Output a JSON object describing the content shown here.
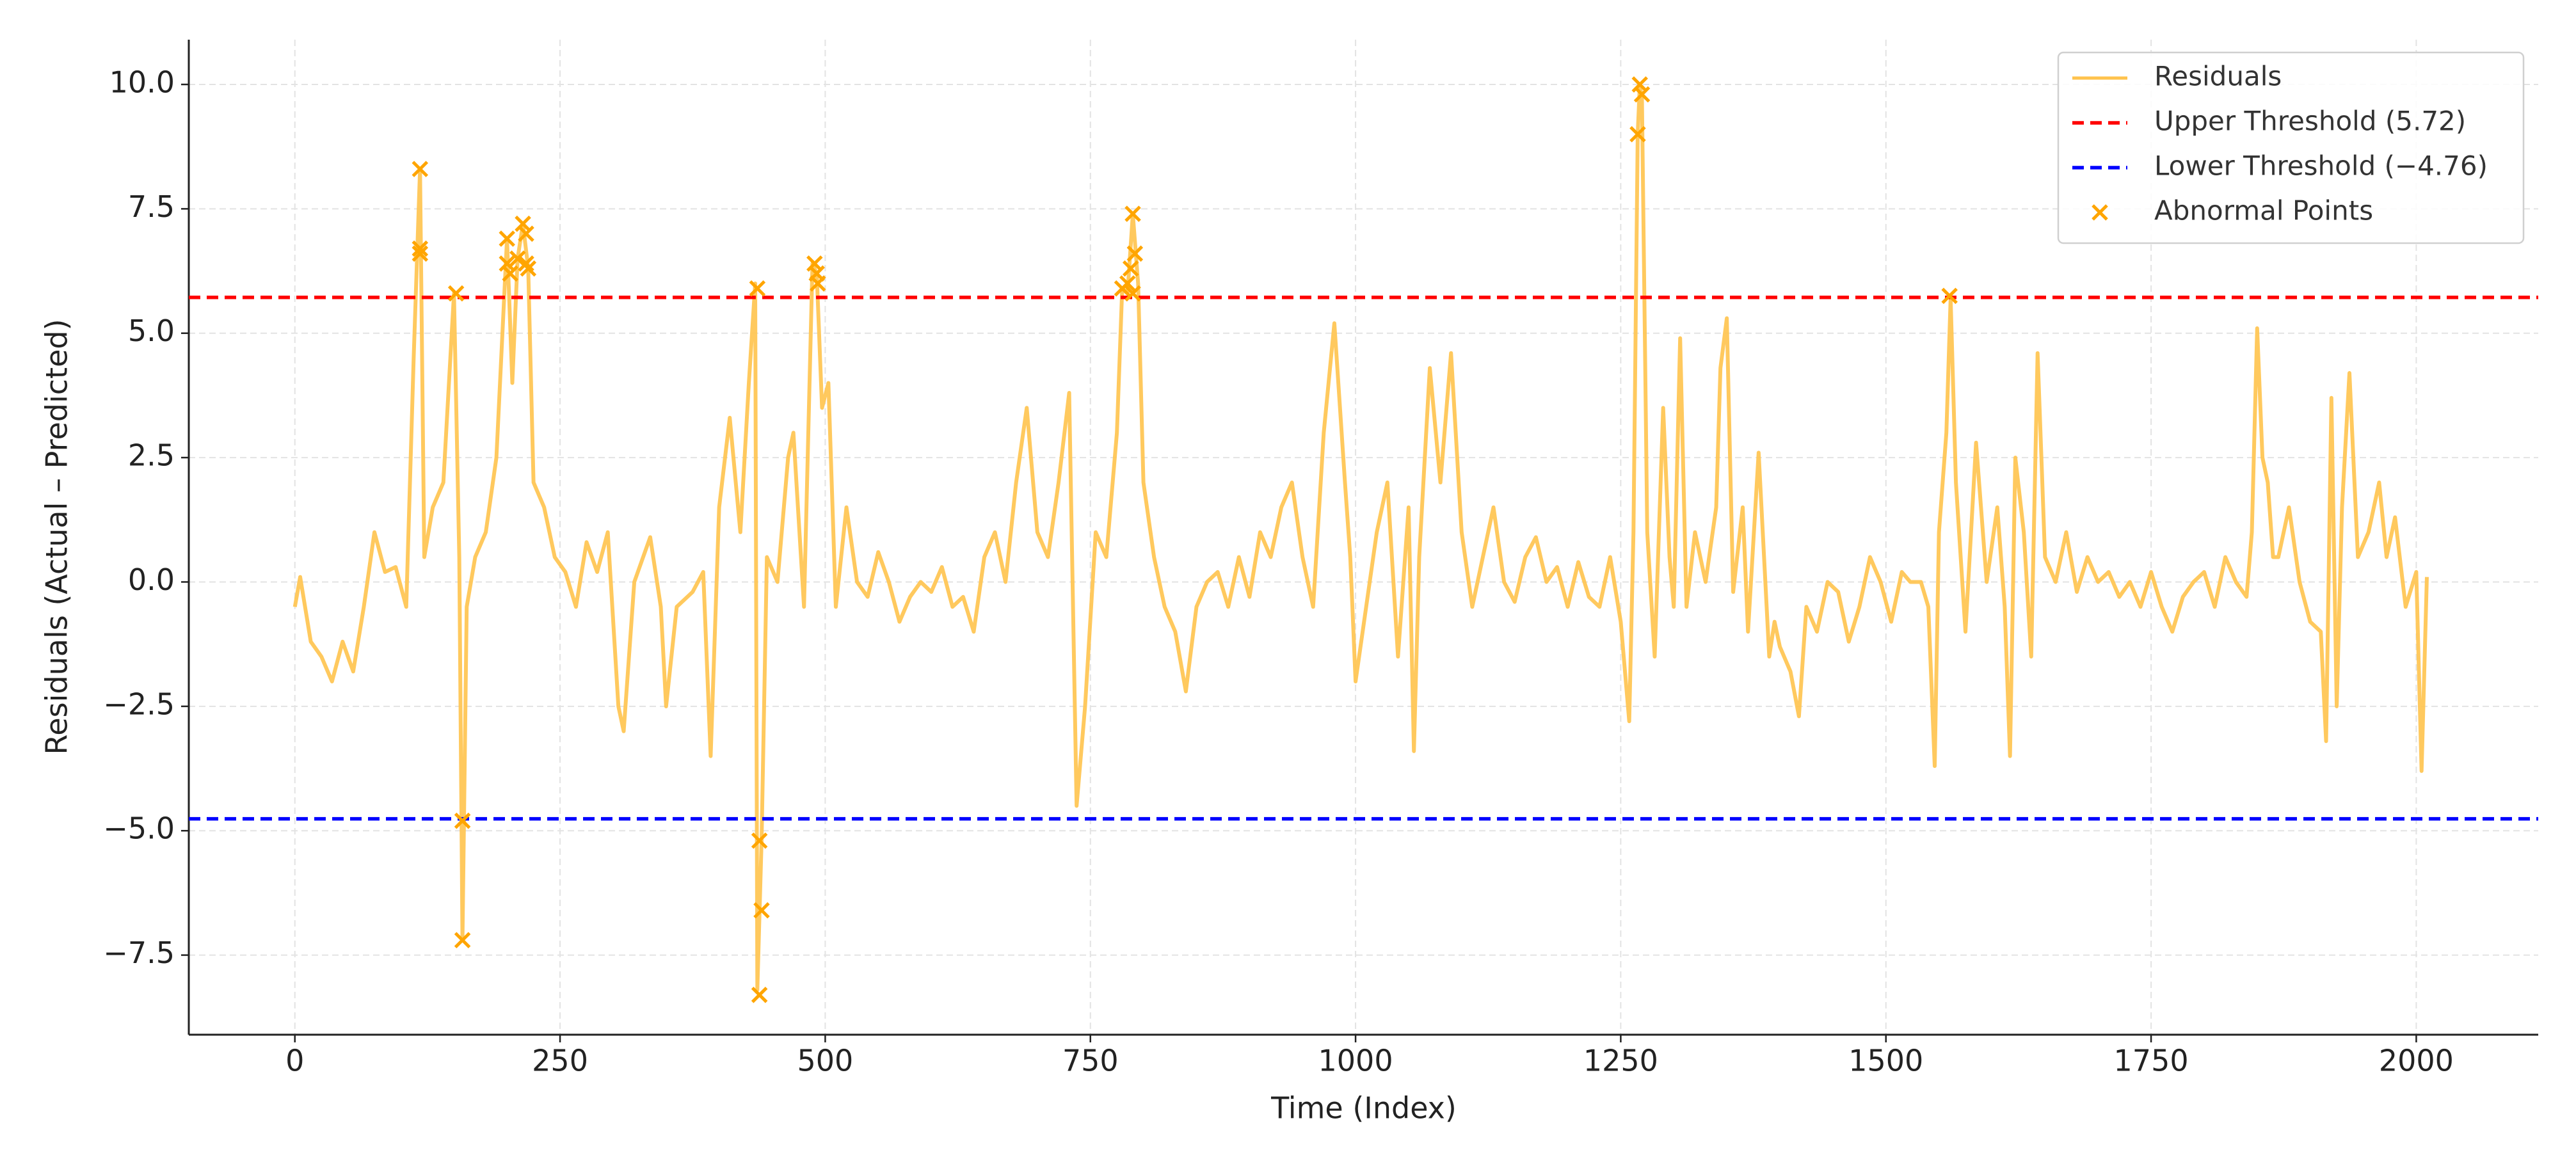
{
  "chart_data": {
    "type": "line",
    "xlabel": "Time (Index)",
    "ylabel": "Residuals (Actual – Predicted)",
    "xlim": [
      -100,
      2115
    ],
    "ylim": [
      -9.1,
      10.9
    ],
    "xticks": [
      0,
      250,
      500,
      750,
      1000,
      1250,
      1500,
      1750,
      2000
    ],
    "yticks": [
      {
        "value": -7.5,
        "label": "−7.5"
      },
      {
        "value": -5,
        "label": "−5.0"
      },
      {
        "value": -2.5,
        "label": "−2.5"
      },
      {
        "value": 0,
        "label": "0.0"
      },
      {
        "value": 2.5,
        "label": "2.5"
      },
      {
        "value": 5,
        "label": "5.0"
      },
      {
        "value": 7.5,
        "label": "7.5"
      },
      {
        "value": 10,
        "label": "10.0"
      }
    ],
    "grid": true,
    "legend": "upper right",
    "series": [
      {
        "name": "Residuals",
        "type": "line",
        "color": "#ffc34d",
        "x": [
          0,
          5,
          15,
          25,
          35,
          45,
          55,
          65,
          75,
          85,
          95,
          105,
          112,
          118,
          122,
          130,
          140,
          150,
          155,
          158,
          162,
          170,
          180,
          190,
          200,
          205,
          210,
          215,
          220,
          225,
          235,
          245,
          255,
          265,
          275,
          285,
          295,
          305,
          310,
          320,
          335,
          345,
          350,
          360,
          375,
          385,
          392,
          400,
          410,
          420,
          428,
          434,
          436,
          440,
          445,
          455,
          465,
          470,
          480,
          488,
          492,
          497,
          503,
          510,
          520,
          530,
          540,
          550,
          560,
          570,
          580,
          590,
          600,
          610,
          620,
          630,
          640,
          650,
          660,
          670,
          680,
          690,
          700,
          710,
          720,
          730,
          737,
          745,
          755,
          765,
          775,
          780,
          785,
          790,
          795,
          800,
          810,
          820,
          830,
          840,
          850,
          860,
          870,
          880,
          890,
          900,
          910,
          920,
          930,
          940,
          950,
          960,
          970,
          980,
          990,
          995,
          1000,
          1010,
          1020,
          1030,
          1040,
          1050,
          1055,
          1060,
          1070,
          1080,
          1090,
          1100,
          1110,
          1120,
          1130,
          1140,
          1150,
          1160,
          1170,
          1180,
          1190,
          1200,
          1210,
          1220,
          1230,
          1240,
          1250,
          1258,
          1262,
          1266,
          1268,
          1270,
          1275,
          1282,
          1290,
          1296,
          1300,
          1306,
          1312,
          1320,
          1330,
          1340,
          1344,
          1350,
          1356,
          1365,
          1370,
          1380,
          1390,
          1395,
          1400,
          1410,
          1418,
          1425,
          1435,
          1445,
          1455,
          1465,
          1475,
          1485,
          1495,
          1505,
          1515,
          1523,
          1533,
          1540,
          1546,
          1550,
          1557,
          1561,
          1566,
          1575,
          1585,
          1595,
          1605,
          1612,
          1617,
          1622,
          1630,
          1637,
          1643,
          1650,
          1660,
          1670,
          1680,
          1690,
          1700,
          1710,
          1720,
          1730,
          1740,
          1750,
          1760,
          1770,
          1780,
          1790,
          1800,
          1810,
          1820,
          1830,
          1840,
          1845,
          1850,
          1855,
          1860,
          1865,
          1870,
          1880,
          1890,
          1900,
          1910,
          1915,
          1920,
          1925,
          1930,
          1937,
          1945,
          1955,
          1965,
          1972,
          1980,
          1990,
          2000,
          2005,
          2010
        ],
        "values": [
          -0.5,
          0.1,
          -1.2,
          -1.5,
          -2.0,
          -1.2,
          -1.8,
          -0.5,
          1.0,
          0.2,
          0.3,
          -0.5,
          4.5,
          8.3,
          0.5,
          1.5,
          2.0,
          5.8,
          0.5,
          -7.2,
          -0.5,
          0.5,
          1.0,
          2.5,
          6.9,
          4.0,
          6.5,
          7.2,
          6.3,
          2.0,
          1.5,
          0.5,
          0.2,
          -0.5,
          0.8,
          0.2,
          1.0,
          -2.5,
          -3.0,
          0.0,
          0.9,
          -0.5,
          -2.5,
          -0.5,
          -0.2,
          0.2,
          -3.5,
          1.5,
          3.3,
          1.0,
          4.0,
          6.0,
          -8.2,
          -5.2,
          0.5,
          0.0,
          2.5,
          3.0,
          -0.5,
          6.4,
          6.2,
          3.5,
          4.0,
          -0.5,
          1.5,
          0.0,
          -0.3,
          0.6,
          0.0,
          -0.8,
          -0.3,
          0.0,
          -0.2,
          0.3,
          -0.5,
          -0.3,
          -1.0,
          0.5,
          1.0,
          0.0,
          2.0,
          3.5,
          1.0,
          0.5,
          2.0,
          3.8,
          -4.5,
          -2.5,
          1.0,
          0.5,
          3.0,
          5.9,
          5.8,
          7.4,
          6.0,
          2.0,
          0.5,
          -0.5,
          -1.0,
          -2.2,
          -0.5,
          0.0,
          0.2,
          -0.5,
          0.5,
          -0.3,
          1.0,
          0.5,
          1.5,
          2.0,
          0.5,
          -0.5,
          3.0,
          5.2,
          2.0,
          0.5,
          -2.0,
          -0.5,
          1.0,
          2.0,
          -1.5,
          1.5,
          -3.4,
          0.5,
          4.3,
          2.0,
          4.6,
          1.0,
          -0.5,
          0.5,
          1.5,
          0.0,
          -0.4,
          0.5,
          0.9,
          0.0,
          0.3,
          -0.5,
          0.4,
          -0.3,
          -0.5,
          0.5,
          -0.8,
          -2.8,
          1.0,
          9.0,
          10.0,
          9.7,
          1.0,
          -1.5,
          3.5,
          0.5,
          -0.5,
          4.9,
          -0.5,
          1.0,
          0.0,
          1.5,
          4.3,
          5.3,
          -0.2,
          1.5,
          -1.0,
          2.6,
          -1.5,
          -0.8,
          -1.3,
          -1.8,
          -2.7,
          -0.5,
          -1.0,
          0.0,
          -0.2,
          -1.2,
          -0.5,
          0.5,
          0.0,
          -0.8,
          0.2,
          0.0,
          0.0,
          -0.5,
          -3.7,
          1.0,
          3.0,
          5.7,
          2.0,
          -1.0,
          2.8,
          0.0,
          1.5,
          -0.5,
          -3.5,
          2.5,
          1.0,
          -1.5,
          4.6,
          0.5,
          0.0,
          1.0,
          -0.2,
          0.5,
          0.0,
          0.2,
          -0.3,
          0.0,
          -0.5,
          0.2,
          -0.5,
          -1.0,
          -0.3,
          0.0,
          0.2,
          -0.5,
          0.5,
          0.0,
          -0.3,
          1.0,
          5.1,
          2.5,
          2.0,
          0.5,
          0.5,
          1.5,
          0.0,
          -0.8,
          -1.0,
          -3.2,
          3.7,
          -2.5,
          1.5,
          4.2,
          0.5,
          1.0,
          2.0,
          0.5,
          1.3,
          -0.5,
          0.2,
          -3.8,
          0.1
        ]
      },
      {
        "name": "Upper Threshold (5.72)",
        "type": "hline",
        "color": "#ff0000",
        "value": 5.72
      },
      {
        "name": "Lower Threshold (−4.76)",
        "type": "hline",
        "color": "#0000ff",
        "value": -4.76
      },
      {
        "name": "Abnormal Points",
        "type": "scatter",
        "color": "#ffa500",
        "x": [
          118,
          118,
          118,
          152,
          158,
          158,
          200,
          200,
          203,
          210,
          215,
          218,
          218,
          220,
          436,
          438,
          440,
          438,
          490,
          492,
          493,
          790,
          792,
          788,
          780,
          785,
          790,
          1268,
          1270,
          1266,
          1560
        ],
        "values": [
          8.3,
          6.7,
          6.6,
          5.8,
          -4.8,
          -7.2,
          6.9,
          6.4,
          6.2,
          6.5,
          7.2,
          7.0,
          6.4,
          6.3,
          5.9,
          -5.2,
          -6.6,
          -8.3,
          6.4,
          6.2,
          6.0,
          7.4,
          6.6,
          6.3,
          5.9,
          6.0,
          5.8,
          10.0,
          9.8,
          9.0,
          5.75
        ]
      }
    ]
  }
}
